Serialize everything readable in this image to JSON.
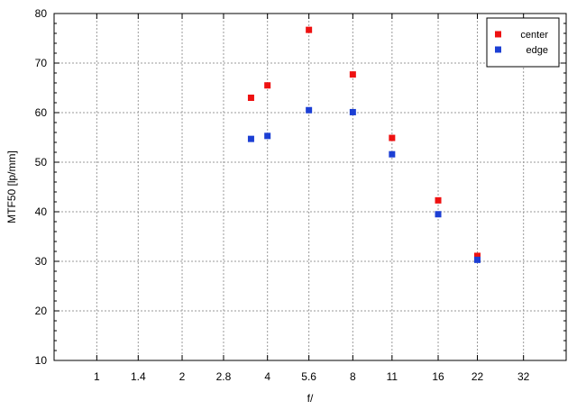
{
  "chart_data": {
    "type": "scatter",
    "title": "",
    "xlabel": "f/",
    "ylabel": "MTF50 [lp/mm]",
    "x_scale": "log2",
    "x_tick_labels": [
      "1",
      "1.4",
      "2",
      "2.8",
      "4",
      "5.6",
      "8",
      "11",
      "16",
      "22",
      "32"
    ],
    "x_tick_values": [
      1,
      1.4,
      2,
      2.8,
      4,
      5.6,
      8,
      11,
      16,
      22,
      32
    ],
    "xlim": [
      0.707,
      45.25
    ],
    "ylim": [
      10,
      80
    ],
    "y_ticks": [
      10,
      20,
      30,
      40,
      50,
      60,
      70,
      80
    ],
    "grid": true,
    "legend_position": "top-right",
    "series": [
      {
        "name": "center",
        "color": "#ee1111",
        "points": [
          {
            "x": 3.5,
            "y": 63.0
          },
          {
            "x": 4,
            "y": 65.5
          },
          {
            "x": 5.6,
            "y": 76.7
          },
          {
            "x": 8,
            "y": 67.7
          },
          {
            "x": 11,
            "y": 54.9
          },
          {
            "x": 16,
            "y": 42.3
          },
          {
            "x": 22,
            "y": 31.1
          }
        ]
      },
      {
        "name": "edge",
        "color": "#1c3fd4",
        "points": [
          {
            "x": 3.5,
            "y": 54.7
          },
          {
            "x": 4,
            "y": 55.3
          },
          {
            "x": 5.6,
            "y": 60.5
          },
          {
            "x": 8,
            "y": 60.1
          },
          {
            "x": 11,
            "y": 51.6
          },
          {
            "x": 16,
            "y": 39.5
          },
          {
            "x": 22,
            "y": 30.3
          }
        ]
      }
    ]
  }
}
